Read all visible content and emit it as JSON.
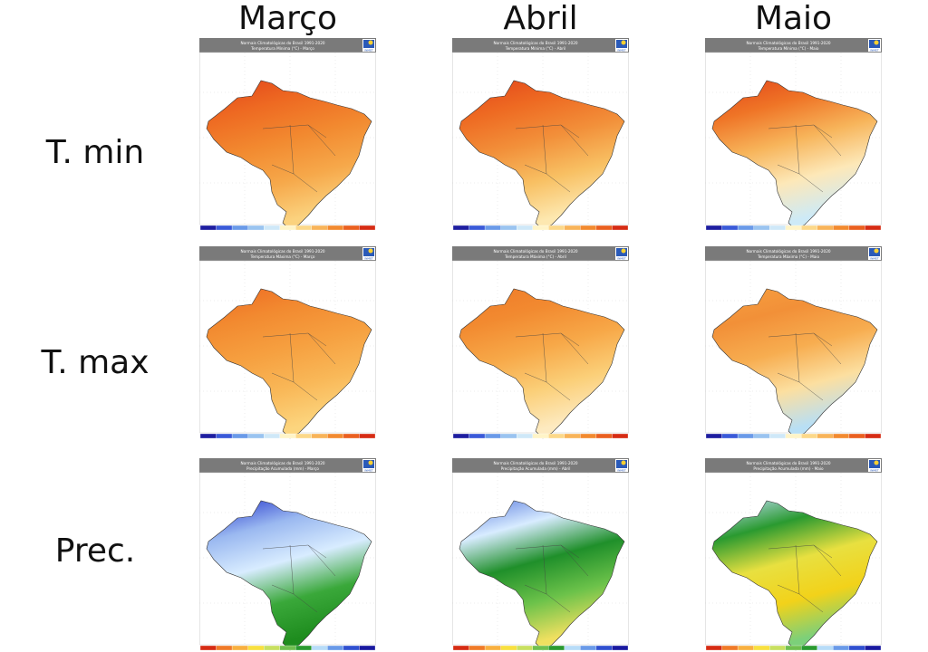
{
  "columns": [
    "Março",
    "Abril",
    "Maio"
  ],
  "rows": [
    "T. min",
    "T. max",
    "Prec."
  ],
  "header_line1": "Normais Climatológicas do Brasil 1991-2020",
  "logo_text": "INMET",
  "panels": [
    [
      {
        "subtitle": "Temperatura Mínima (°C) - Março",
        "stops": [
          "#e2441a",
          "#ee6a22",
          "#f28a30",
          "#f6a84a",
          "#fbd27e"
        ]
      },
      {
        "subtitle": "Temperatura Mínima (°C) - Abril",
        "stops": [
          "#e2441a",
          "#ee6a22",
          "#f2903a",
          "#f8c063",
          "#fde8b0"
        ]
      },
      {
        "subtitle": "Temperatura Mínima (°C) - Maio",
        "stops": [
          "#e2441a",
          "#ef7426",
          "#f7b45a",
          "#fde8b8",
          "#cdeaf7"
        ]
      }
    ],
    [
      {
        "subtitle": "Temperatura Máxima (°C) - Março",
        "stops": [
          "#ee6a22",
          "#f28a30",
          "#f6a040",
          "#f9b858",
          "#fcd57e"
        ]
      },
      {
        "subtitle": "Temperatura Máxima (°C) - Abril",
        "stops": [
          "#ef7a28",
          "#f28a30",
          "#f7a848",
          "#fbcf78",
          "#fdeac0"
        ]
      },
      {
        "subtitle": "Temperatura Máxima (°C) - Maio",
        "stops": [
          "#f6a040",
          "#f29038",
          "#f7ad50",
          "#fcdfa0",
          "#b8dff5"
        ]
      }
    ],
    [
      {
        "subtitle": "Precipitação Acumulada (mm) - Março",
        "stops": [
          "#2233cc",
          "#9ab8f0",
          "#d8ecff",
          "#3aa83a",
          "#1e8c1e"
        ]
      },
      {
        "subtitle": "Precipitação Acumulada (mm) - Abril",
        "stops": [
          "#5577dd",
          "#d8ecff",
          "#1f8f2a",
          "#6cc24a",
          "#f0e060"
        ]
      },
      {
        "subtitle": "Precipitação Acumulada (mm) - Maio",
        "stops": [
          "#c8e2ff",
          "#2a9a30",
          "#e8e040",
          "#f2d21a",
          "#7cd07a"
        ]
      }
    ]
  ],
  "colorbars": {
    "temperature": [
      "#1e1ea0",
      "#3a5ad8",
      "#6a9ae8",
      "#9ac4f0",
      "#cfe8f8",
      "#fff4c8",
      "#fcd88a",
      "#f8b45a",
      "#f28a30",
      "#ea6020",
      "#d62c14"
    ],
    "precipitation": [
      "#d62c14",
      "#f07a28",
      "#f8b040",
      "#f8e040",
      "#c8e060",
      "#70c050",
      "#2a9a30",
      "#b8dcf8",
      "#6a9ae8",
      "#3050d0",
      "#1a1aa0"
    ]
  }
}
